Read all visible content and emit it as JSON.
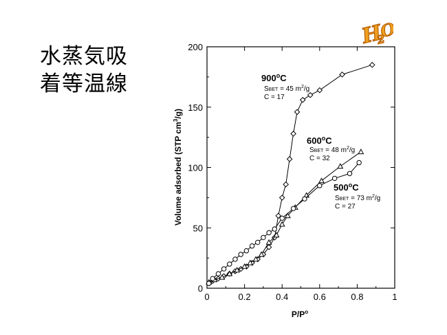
{
  "slide": {
    "title_line1": "水蒸気吸",
    "title_line2": "着等温線",
    "logo_text": "H2O"
  },
  "chart_data": {
    "type": "scatter",
    "xlabel": "P/P",
    "xlabel_sup": "o",
    "ylabel": "Volume adsorbed (STP cm",
    "ylabel_sup": "3",
    "ylabel_end": "/g)",
    "xlim": [
      0,
      1
    ],
    "ylim": [
      0,
      200
    ],
    "x_ticks": [
      "0",
      "0.2",
      "0.4",
      "0.6",
      "0.8",
      "1"
    ],
    "y_ticks": [
      "0",
      "50",
      "100",
      "150",
      "200"
    ],
    "x_tick_values": [
      0,
      0.2,
      0.4,
      0.6,
      0.8,
      1
    ],
    "y_tick_values": [
      0,
      50,
      100,
      150,
      200
    ],
    "series": [
      {
        "name": "900°C",
        "marker": "diamond",
        "x": [
          0.01,
          0.03,
          0.06,
          0.09,
          0.12,
          0.15,
          0.18,
          0.21,
          0.24,
          0.27,
          0.3,
          0.33,
          0.36,
          0.38,
          0.4,
          0.42,
          0.44,
          0.46,
          0.48,
          0.51,
          0.55,
          0.6,
          0.72,
          0.88
        ],
        "y": [
          4,
          6,
          8,
          10,
          12,
          14,
          16,
          18,
          21,
          24,
          28,
          34,
          42,
          60,
          75,
          86,
          107,
          128,
          146,
          156,
          160,
          164,
          177,
          185
        ]
      },
      {
        "name": "600°C",
        "marker": "triangle",
        "x": [
          0.01,
          0.04,
          0.08,
          0.12,
          0.16,
          0.2,
          0.23,
          0.26,
          0.29,
          0.33,
          0.37,
          0.4,
          0.43,
          0.47,
          0.53,
          0.61,
          0.71,
          0.82
        ],
        "y": [
          5,
          7,
          9,
          12,
          15,
          18,
          21,
          24,
          28,
          38,
          44,
          53,
          60,
          67,
          77,
          89,
          101,
          113
        ]
      },
      {
        "name": "500°C",
        "marker": "circle",
        "x": [
          0.01,
          0.03,
          0.06,
          0.09,
          0.12,
          0.15,
          0.18,
          0.21,
          0.24,
          0.27,
          0.3,
          0.33,
          0.36,
          0.4,
          0.46,
          0.52,
          0.6,
          0.68,
          0.76,
          0.81
        ],
        "y": [
          4,
          8,
          12,
          16,
          20,
          24,
          28,
          31,
          35,
          38,
          42,
          46,
          49,
          58,
          66,
          74,
          85,
          91,
          95,
          104
        ]
      }
    ],
    "annotations": [
      {
        "id": "t900",
        "temp": "900",
        "deg": "o",
        "unit": "C",
        "sbet": "45",
        "c": "C = 17"
      },
      {
        "id": "t600",
        "temp": "600",
        "deg": "o",
        "unit": "C",
        "sbet": "48",
        "c": "C = 32"
      },
      {
        "id": "t500",
        "temp": "500",
        "deg": "o",
        "unit": "C",
        "sbet": "73",
        "c": "C = 27"
      }
    ],
    "sbet_prefix": "S",
    "sbet_sub": "BET",
    "sbet_eq": " = ",
    "sbet_unit": " m",
    "sbet_unit_sup": "2",
    "sbet_unit_end": "/g"
  }
}
